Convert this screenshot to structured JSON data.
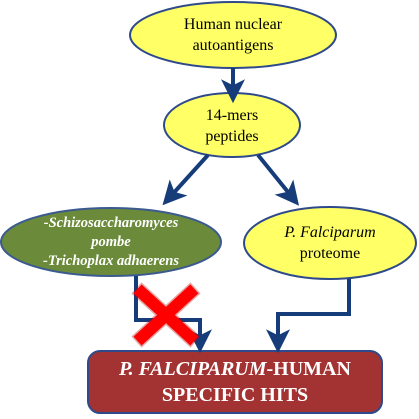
{
  "colors": {
    "yellow_fill": "#ffff66",
    "yellow_stroke": "#2e4a8a",
    "green_fill": "#6b8b3a",
    "green_stroke": "#3b5a8f",
    "final_fill": "#a33333",
    "final_stroke": "#2e4a8a",
    "arrow": "#163d7a",
    "cross": "#ff0000"
  },
  "nodes": {
    "autoantigens": {
      "line1": "Human nuclear",
      "line2": "autoantigens"
    },
    "peptides": {
      "line1": "14-mers",
      "line2": "peptides"
    },
    "organisms": {
      "line1": "-Schizosaccharomyces",
      "line2": "pombe",
      "line3": "-Trichoplax adhaerens"
    },
    "proteome": {
      "line1": "P. Falciparum",
      "line2": "proteome"
    },
    "result": {
      "line1_italic": "P. FALCIPARUM",
      "line1_rest": "-HUMAN",
      "line2": "SPECIFIC HITS"
    }
  },
  "edges": [
    {
      "from": "autoantigens",
      "to": "peptides",
      "excluded": false
    },
    {
      "from": "peptides",
      "to": "organisms",
      "excluded": false
    },
    {
      "from": "peptides",
      "to": "proteome",
      "excluded": false
    },
    {
      "from": "organisms",
      "to": "result",
      "excluded": true
    },
    {
      "from": "proteome",
      "to": "result",
      "excluded": false
    }
  ]
}
